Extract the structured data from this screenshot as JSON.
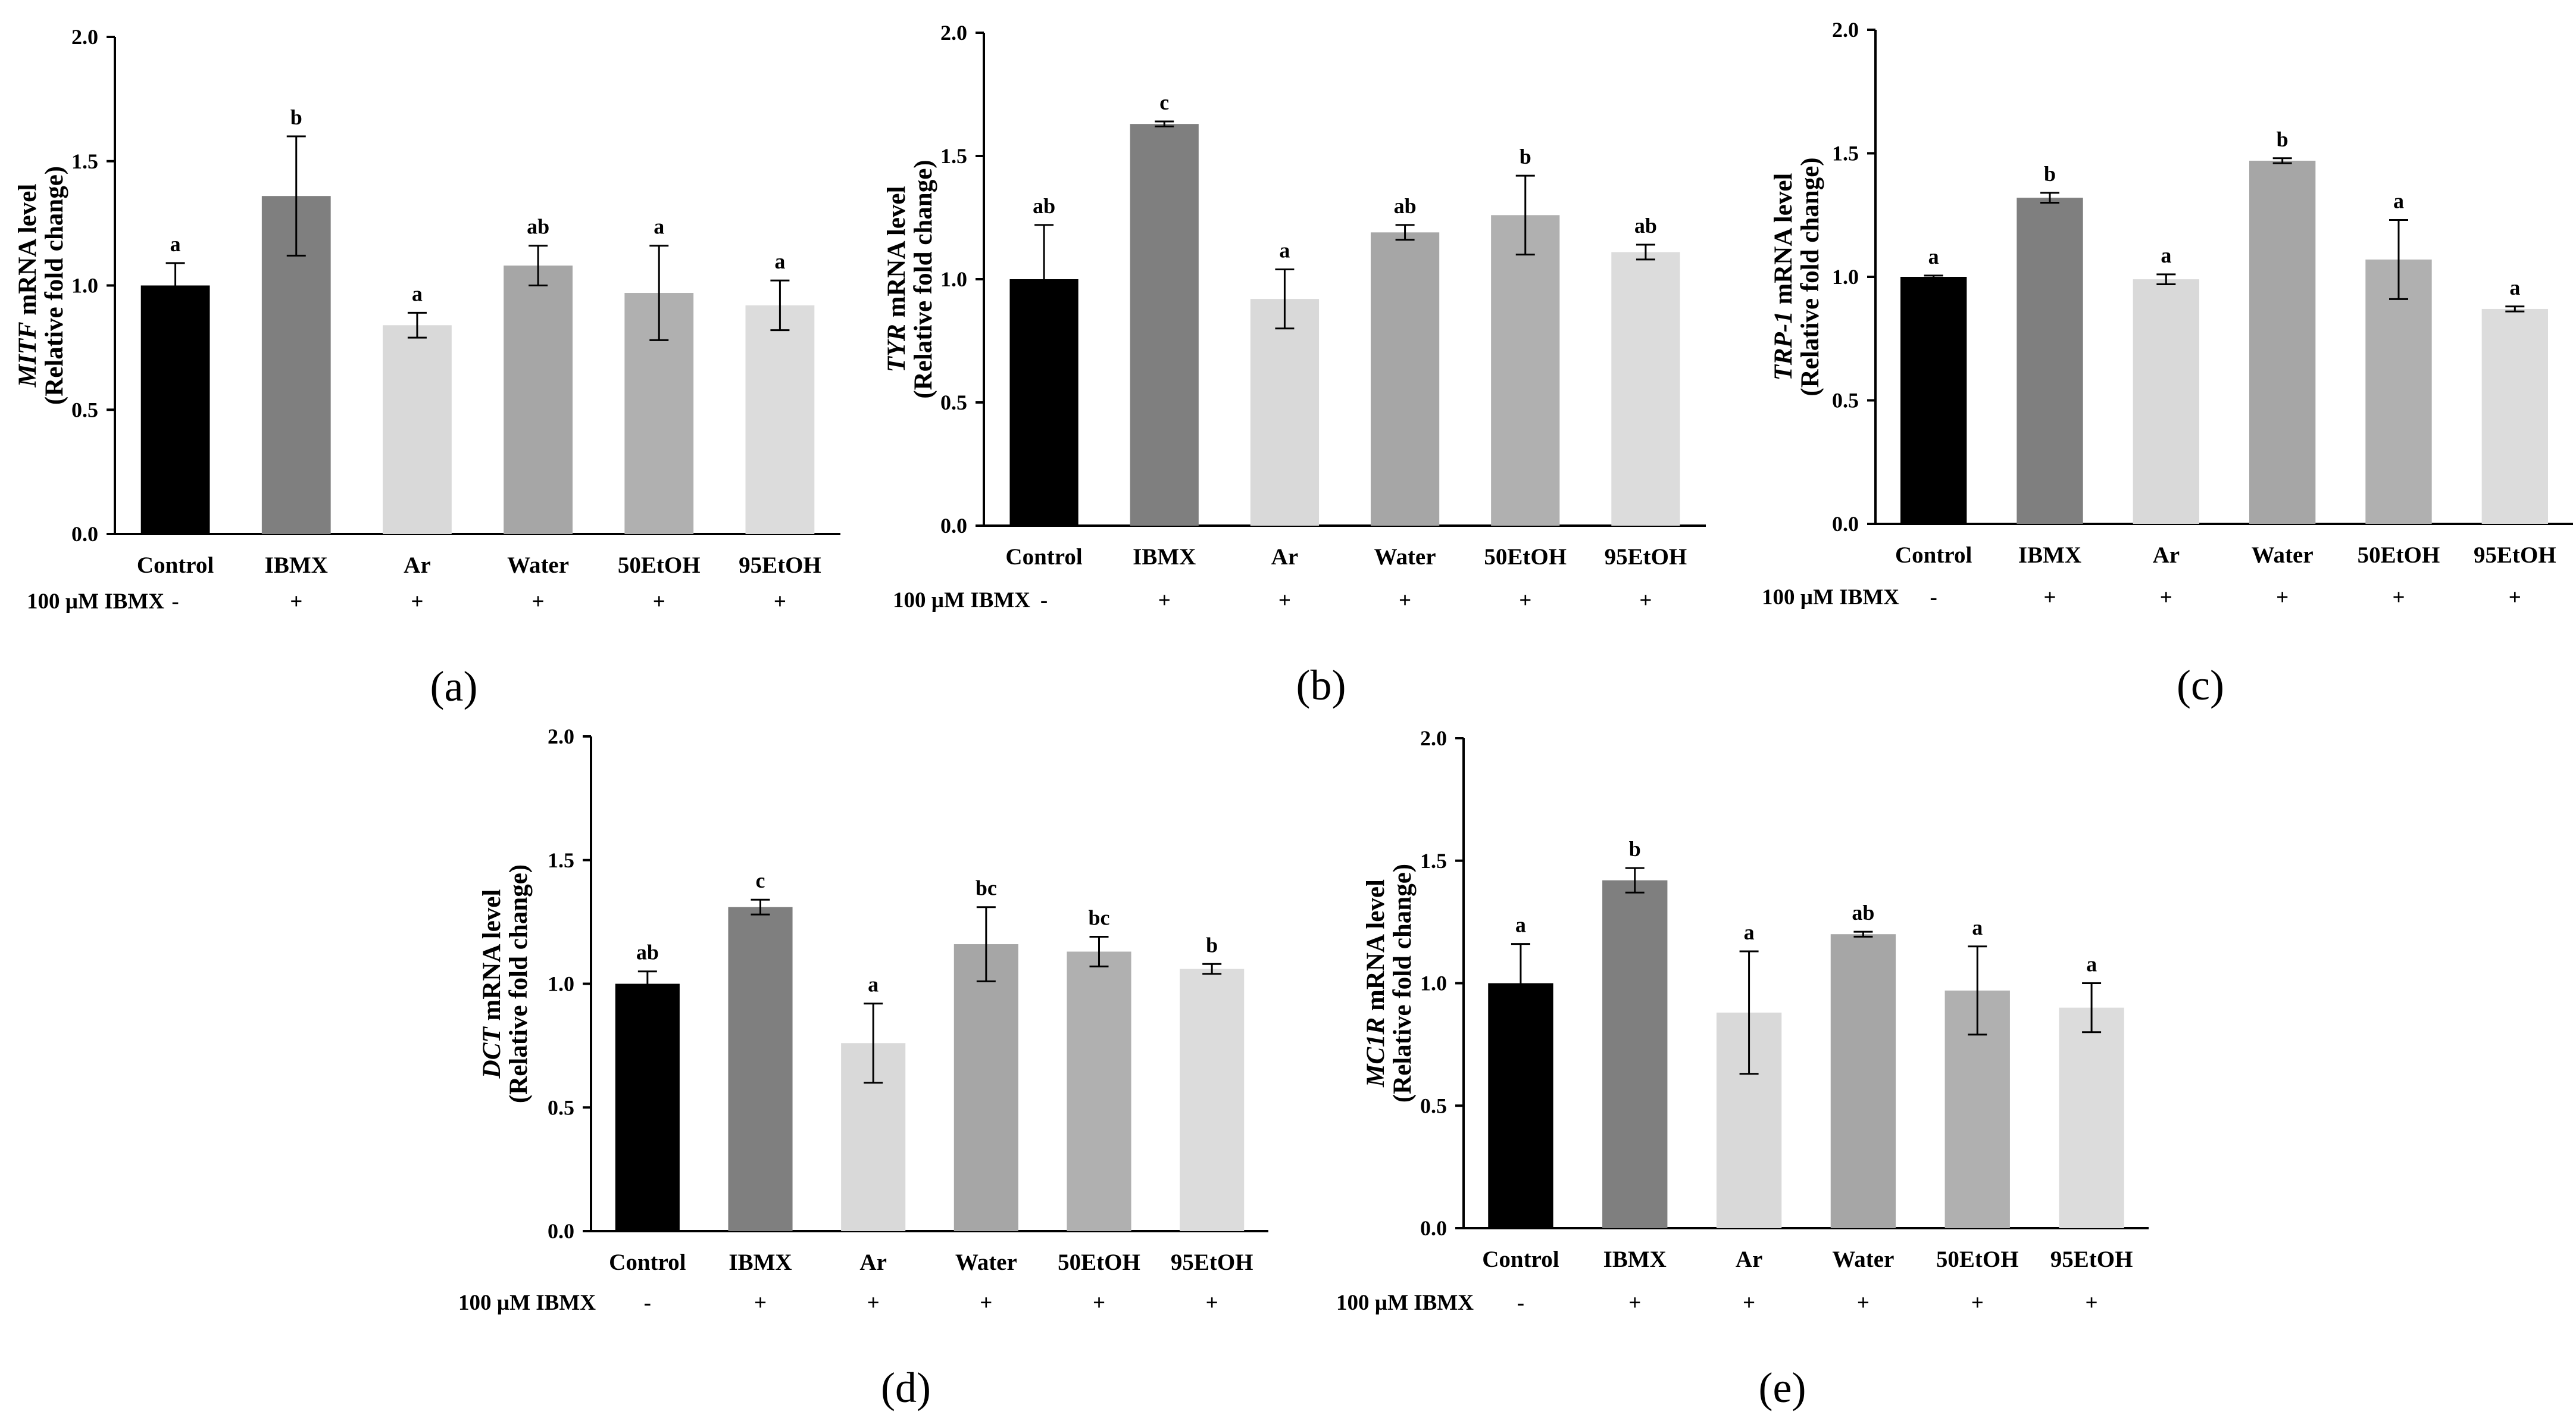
{
  "treatment_label": "100 µM IBMX",
  "chart_data": [
    {
      "type": "bar",
      "panel": "(a)",
      "gene": "MITF",
      "ylabel_suffix": " mRNA level",
      "ylabel_line2": "(Relative fold change)",
      "categories": [
        "Control",
        "IBMX",
        "Ar",
        "Water",
        "50EtOH",
        "95EtOH"
      ],
      "values": [
        1.0,
        1.36,
        0.84,
        1.08,
        0.97,
        0.92
      ],
      "errors": [
        0.09,
        0.24,
        0.05,
        0.08,
        0.19,
        0.1
      ],
      "significance": [
        "a",
        "b",
        "a",
        "ab",
        "a",
        "a"
      ],
      "treatment": [
        "-",
        "+",
        "+",
        "+",
        "+",
        "+"
      ],
      "ylim": [
        0,
        2.0
      ],
      "yticks": [
        "0.0",
        "0.5",
        "1.0",
        "1.5",
        "2.0"
      ],
      "colors": [
        "#000000",
        "#7f7f7f",
        "#d9d9d9",
        "#a6a6a6",
        "#b0b0b0",
        "#dcdcdc"
      ]
    },
    {
      "type": "bar",
      "panel": "(b)",
      "gene": "TYR",
      "ylabel_suffix": " mRNA level",
      "ylabel_line2": "(Relative fold change)",
      "categories": [
        "Control",
        "IBMX",
        "Ar",
        "Water",
        "50EtOH",
        "95EtOH"
      ],
      "values": [
        1.0,
        1.63,
        0.92,
        1.19,
        1.26,
        1.11
      ],
      "errors": [
        0.22,
        0.01,
        0.12,
        0.03,
        0.16,
        0.03
      ],
      "significance": [
        "ab",
        "c",
        "a",
        "ab",
        "b",
        "ab"
      ],
      "treatment": [
        "-",
        "+",
        "+",
        "+",
        "+",
        "+"
      ],
      "ylim": [
        0,
        2.0
      ],
      "yticks": [
        "0.0",
        "0.5",
        "1.0",
        "1.5",
        "2.0"
      ],
      "colors": [
        "#000000",
        "#7f7f7f",
        "#d9d9d9",
        "#a6a6a6",
        "#b0b0b0",
        "#dcdcdc"
      ]
    },
    {
      "type": "bar",
      "panel": "(c)",
      "gene": "TRP-1",
      "ylabel_suffix": " mRNA level",
      "ylabel_line2": "(Relative fold change)",
      "categories": [
        "Control",
        "IBMX",
        "Ar",
        "Water",
        "50EtOH",
        "95EtOH"
      ],
      "values": [
        1.0,
        1.32,
        0.99,
        1.47,
        1.07,
        0.87
      ],
      "errors": [
        0.005,
        0.02,
        0.02,
        0.01,
        0.16,
        0.01
      ],
      "significance": [
        "a",
        "b",
        "a",
        "b",
        "a",
        "a"
      ],
      "treatment": [
        "-",
        "+",
        "+",
        "+",
        "+",
        "+"
      ],
      "ylim": [
        0,
        2.0
      ],
      "yticks": [
        "0.0",
        "0.5",
        "1.0",
        "1.5",
        "2.0"
      ],
      "colors": [
        "#000000",
        "#7f7f7f",
        "#d9d9d9",
        "#a6a6a6",
        "#b0b0b0",
        "#dcdcdc"
      ]
    },
    {
      "type": "bar",
      "panel": "(d)",
      "gene": "DCT",
      "ylabel_suffix": " mRNA level",
      "ylabel_line2": "(Relative fold change)",
      "categories": [
        "Control",
        "IBMX",
        "Ar",
        "Water",
        "50EtOH",
        "95EtOH"
      ],
      "values": [
        1.0,
        1.31,
        0.76,
        1.16,
        1.13,
        1.06
      ],
      "errors": [
        0.05,
        0.03,
        0.16,
        0.15,
        0.06,
        0.02
      ],
      "significance": [
        "ab",
        "c",
        "a",
        "bc",
        "bc",
        "b"
      ],
      "treatment": [
        "-",
        "+",
        "+",
        "+",
        "+",
        "+"
      ],
      "ylim": [
        0,
        2.0
      ],
      "yticks": [
        "0.0",
        "0.5",
        "1.0",
        "1.5",
        "2.0"
      ],
      "colors": [
        "#000000",
        "#7f7f7f",
        "#d9d9d9",
        "#a6a6a6",
        "#b0b0b0",
        "#dcdcdc"
      ]
    },
    {
      "type": "bar",
      "panel": "(e)",
      "gene": "MC1R",
      "ylabel_suffix": " mRNA level",
      "ylabel_line2": "(Relative fold change)",
      "categories": [
        "Control",
        "IBMX",
        "Ar",
        "Water",
        "50EtOH",
        "95EtOH"
      ],
      "values": [
        1.0,
        1.42,
        0.88,
        1.2,
        0.97,
        0.9
      ],
      "errors": [
        0.16,
        0.05,
        0.25,
        0.01,
        0.18,
        0.1
      ],
      "significance": [
        "a",
        "b",
        "a",
        "ab",
        "a",
        "a"
      ],
      "treatment": [
        "-",
        "+",
        "+",
        "+",
        "+",
        "+"
      ],
      "ylim": [
        0,
        2.0
      ],
      "yticks": [
        "0.0",
        "0.5",
        "1.0",
        "1.5",
        "2.0"
      ],
      "colors": [
        "#000000",
        "#7f7f7f",
        "#d9d9d9",
        "#a6a6a6",
        "#b0b0b0",
        "#dcdcdc"
      ]
    }
  ]
}
